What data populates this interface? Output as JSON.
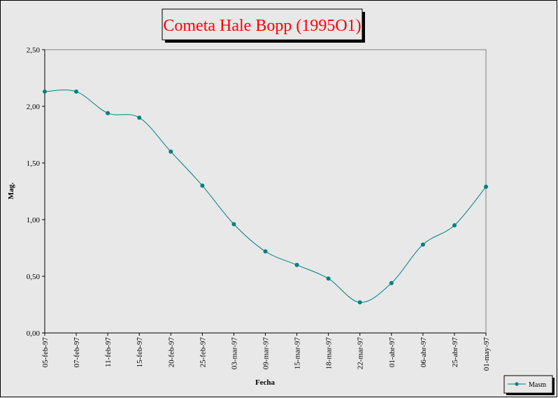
{
  "chart_data": {
    "type": "line",
    "title": "Cometa Hale Bopp (1995O1)",
    "xlabel": "Fecha",
    "ylabel": "Mag.",
    "categories": [
      "05-feb-97",
      "07-feb-97",
      "11-feb-97",
      "15-feb-97",
      "20-feb-97",
      "25-feb-97",
      "03-mar-97",
      "09-mar-97",
      "15-mar-97",
      "18-mar-97",
      "22-mar-97",
      "01-abr-97",
      "06-abr-97",
      "25-abr-97",
      "01-may-97"
    ],
    "series": [
      {
        "name": "Masm",
        "values": [
          2.13,
          2.13,
          1.94,
          1.9,
          1.6,
          1.3,
          0.96,
          0.72,
          0.6,
          0.48,
          0.27,
          0.44,
          0.78,
          0.95,
          1.29
        ]
      }
    ],
    "ylim": [
      0,
      2.5
    ],
    "yticks": [
      "0,00",
      "0,50",
      "1,00",
      "1,50",
      "2,00",
      "2,50"
    ],
    "grid": false,
    "legend_position": "bottom-right",
    "colors": {
      "series": "#008080",
      "title": "#ff0000",
      "plot_background": "#e8e8e8",
      "chart_background": "#e8e8e8"
    }
  }
}
